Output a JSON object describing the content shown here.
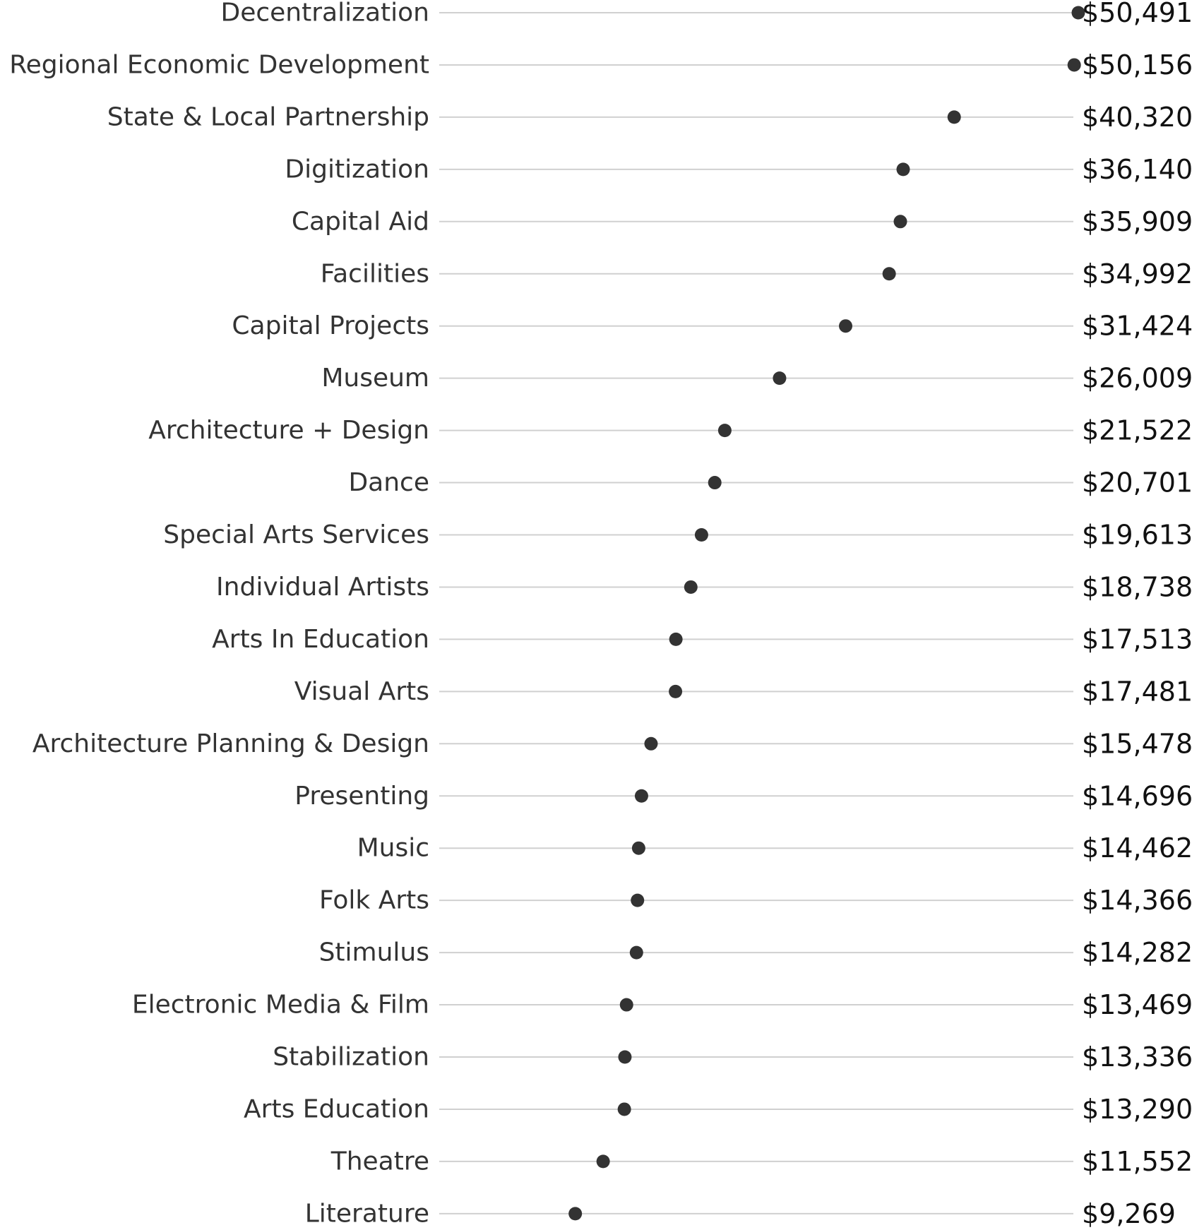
{
  "chart_data": {
    "type": "scatter",
    "title": "",
    "xlabel": "",
    "ylabel": "",
    "grid": false,
    "legend": "none",
    "dot_color": "#333333",
    "line_color": "#d0d0d0",
    "categories": [
      "Decentralization",
      "Regional Economic Development",
      "State & Local Partnership",
      "Digitization",
      "Capital Aid",
      "Facilities",
      "Capital Projects",
      "Museum",
      "Architecture + Design",
      "Dance",
      "Special Arts Services",
      "Individual Artists",
      "Arts In Education",
      "Visual Arts",
      "Architecture Planning & Design",
      "Presenting",
      "Music",
      "Folk Arts",
      "Stimulus",
      "Electronic Media & Film",
      "Stabilization",
      "Arts Education",
      "Theatre",
      "Literature"
    ],
    "values": [
      50491,
      50156,
      40320,
      36140,
      35909,
      34992,
      31424,
      26009,
      21522,
      20701,
      19613,
      18738,
      17513,
      17481,
      15478,
      14696,
      14462,
      14366,
      14282,
      13469,
      13336,
      13290,
      11552,
      9269
    ],
    "value_labels": [
      "$50,491",
      "$50,156",
      "$40,320",
      "$36,140",
      "$35,909",
      "$34,992",
      "$31,424",
      "$26,009",
      "$21,522",
      "$20,701",
      "$19,613",
      "$18,738",
      "$17,513",
      "$17,481",
      "$15,478",
      "$14,696",
      "$14,462",
      "$14,366",
      "$14,282",
      "$13,469",
      "$13,336",
      "$13,290",
      "$11,552",
      "$9,269"
    ],
    "xlim": [
      0,
      51000
    ]
  }
}
